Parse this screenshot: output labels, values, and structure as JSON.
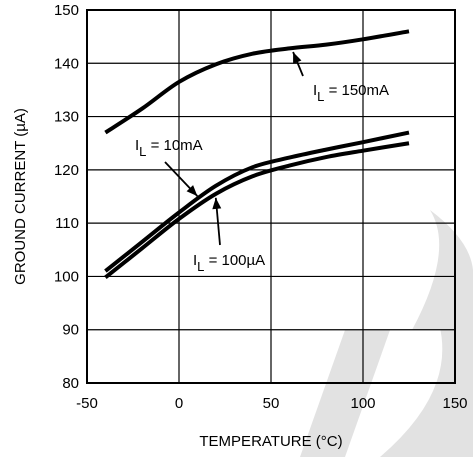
{
  "chart_data": {
    "type": "line",
    "title": "",
    "xlabel": "TEMPERATURE (°C)",
    "ylabel": "GROUND CURRENT (µA)",
    "xlim": [
      -50,
      150
    ],
    "ylim": [
      80,
      150
    ],
    "xticks": [
      -50,
      0,
      50,
      100,
      150
    ],
    "yticks": [
      80,
      90,
      100,
      110,
      120,
      130,
      140,
      150
    ],
    "grid": true,
    "series": [
      {
        "name": "I_L = 150mA",
        "x": [
          -40,
          -20,
          0,
          20,
          40,
          60,
          80,
          100,
          125
        ],
        "y": [
          127,
          131.5,
          136.5,
          139.8,
          141.8,
          142.8,
          143.5,
          144.5,
          146
        ]
      },
      {
        "name": "I_L = 10mA",
        "x": [
          -40,
          -20,
          0,
          20,
          40,
          60,
          80,
          100,
          125
        ],
        "y": [
          101,
          106.5,
          112,
          117,
          120.5,
          122.3,
          123.8,
          125.2,
          127
        ]
      },
      {
        "name": "I_L = 100µA",
        "x": [
          -40,
          -20,
          0,
          20,
          40,
          60,
          80,
          100,
          125
        ],
        "y": [
          99.8,
          105.3,
          110.8,
          115.5,
          118.8,
          120.8,
          122.4,
          123.6,
          125
        ]
      }
    ],
    "annotations": [
      {
        "series": "I_L = 150mA",
        "label_main": "I",
        "label_sub": "L",
        "label_rest": " = 150mA"
      },
      {
        "series": "I_L = 10mA",
        "label_main": "I",
        "label_sub": "L",
        "label_rest": " = 10mA"
      },
      {
        "series": "I_L = 100µA",
        "label_main": "I",
        "label_sub": "L",
        "label_rest": " = 100µA"
      }
    ]
  }
}
